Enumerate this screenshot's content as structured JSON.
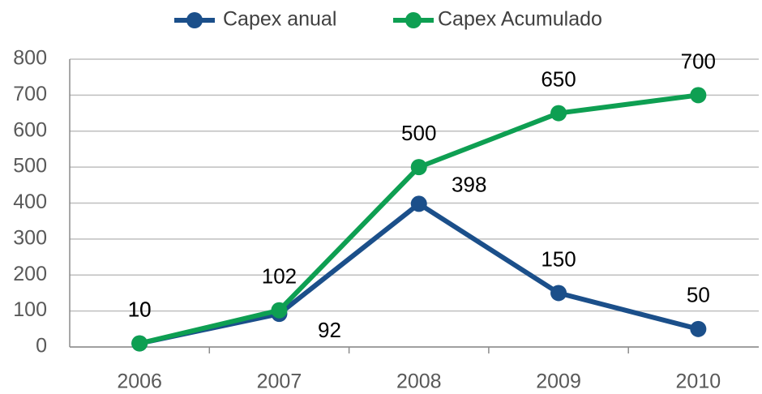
{
  "chart_data": {
    "type": "line",
    "categories": [
      "2006",
      "2007",
      "2008",
      "2009",
      "2010"
    ],
    "series": [
      {
        "name": "Capex anual",
        "color": "#1b4f8a",
        "values": [
          10,
          92,
          398,
          150,
          50
        ]
      },
      {
        "name": "Capex Acumulado",
        "color": "#0e9f52",
        "values": [
          10,
          102,
          500,
          650,
          700
        ]
      }
    ],
    "ylim": [
      0,
      800
    ],
    "yticks": [
      0,
      100,
      200,
      300,
      400,
      500,
      600,
      700,
      800
    ],
    "grid": true
  }
}
